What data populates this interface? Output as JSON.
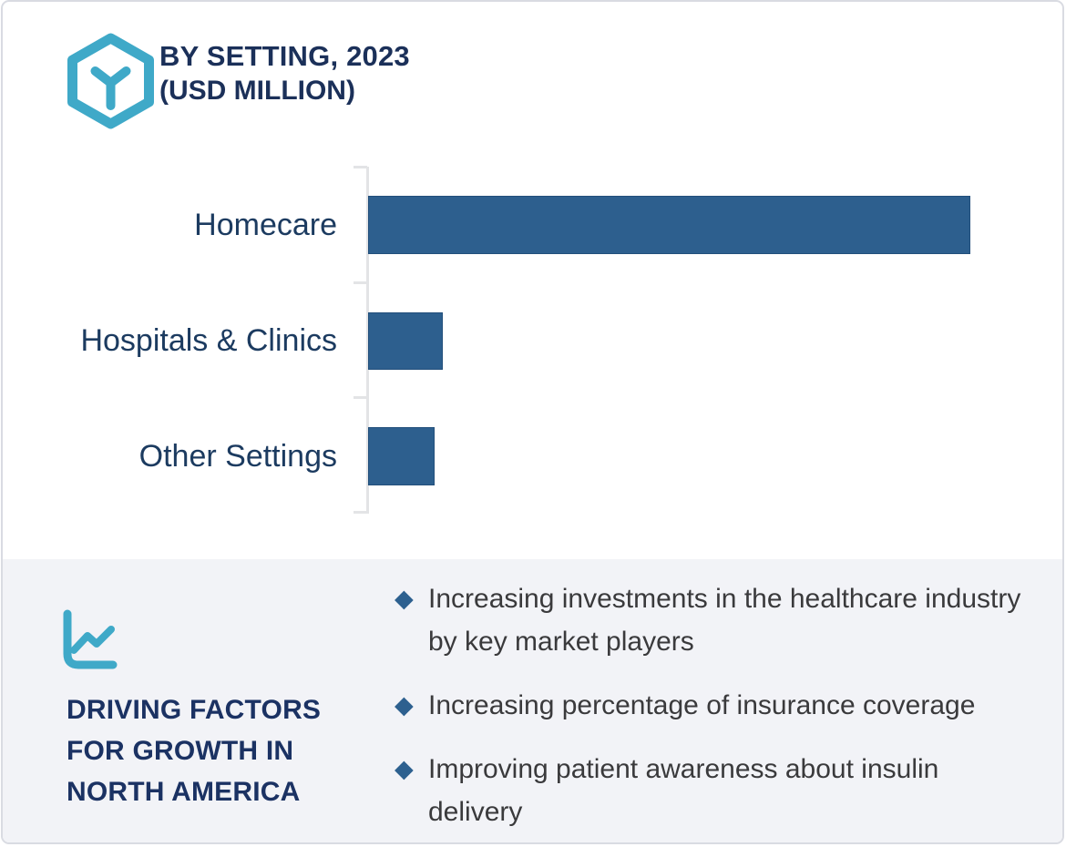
{
  "header": {
    "title": "BY SETTING, 2023",
    "subtitle": "(USD MILLION)"
  },
  "chart_data": {
    "type": "bar",
    "orientation": "horizontal",
    "title": "BY SETTING, 2023 (USD MILLION)",
    "categories": [
      "Homecare",
      "Hospitals & Clinics",
      "Other Settings"
    ],
    "values_relative_pct": [
      100,
      12.4,
      11.0
    ],
    "values_note": "No numeric axis tick labels or data labels are visible; values are bar lengths as a percentage of the longest bar (Homecare).",
    "xlabel": "",
    "ylabel": "",
    "gridlines": false,
    "value_labels_visible": false,
    "legend": "none",
    "bar_color": "#2d5f8e",
    "axis_color": "#e3e4e6"
  },
  "driving_factors": {
    "heading_lines": [
      "DRIVING FACTORS",
      "FOR GROWTH IN",
      "NORTH AMERICA"
    ],
    "bullet_glyph": "◆",
    "items": [
      "Increasing investments in the healthcare industry by key market players",
      "Increasing percentage of insurance coverage",
      "Improving patient awareness about insulin delivery"
    ]
  },
  "icons": {
    "logo": "hexagon-y-icon",
    "factors": "line-chart-icon"
  },
  "colors": {
    "title_navy": "#1b3059",
    "label_navy": "#1c3b60",
    "heading_navy": "#1b3263",
    "bar_blue": "#2d5f8e",
    "accent_teal": "#3fa9c8",
    "panel_background": "#f2f3f7",
    "body_text": "#3a3a3c",
    "card_border": "#d9dbe2"
  }
}
